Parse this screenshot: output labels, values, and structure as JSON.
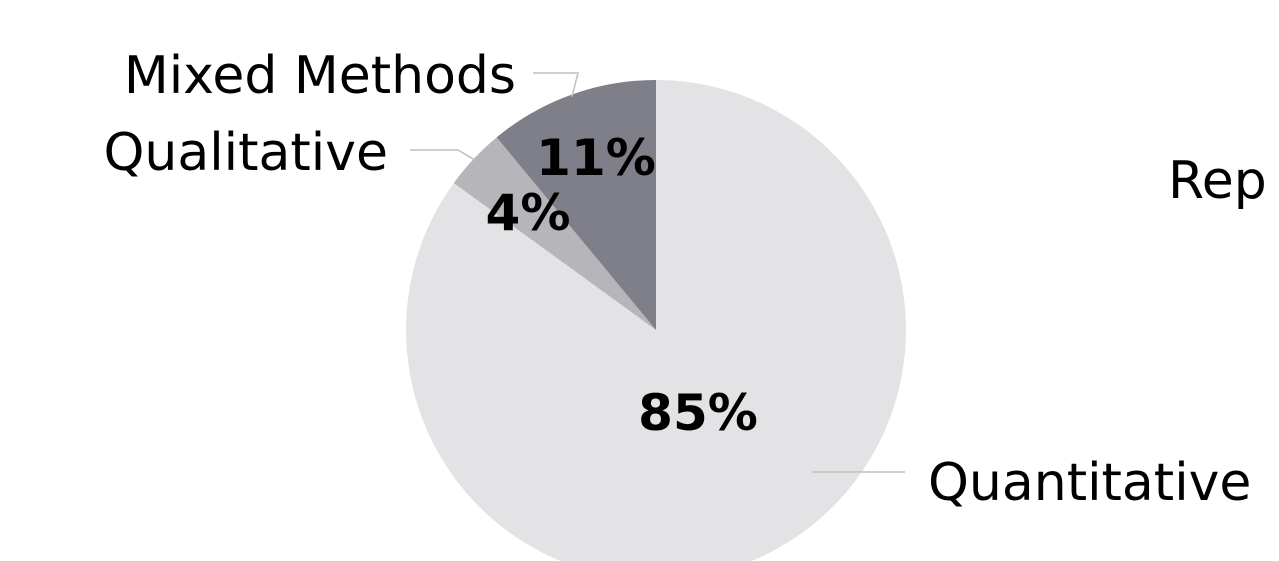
{
  "chart_data": {
    "type": "pie",
    "title": "Rep",
    "categories": [
      "Quantitative",
      "Qualitative",
      "Mixed Methods"
    ],
    "values": [
      85,
      4,
      11
    ],
    "value_labels": [
      "85%",
      "4%",
      "11%"
    ],
    "colors": [
      "#e3e3e5",
      "#b6b6ba",
      "#7f7f89"
    ],
    "start_angle_deg": 0,
    "direction": "clockwise"
  }
}
